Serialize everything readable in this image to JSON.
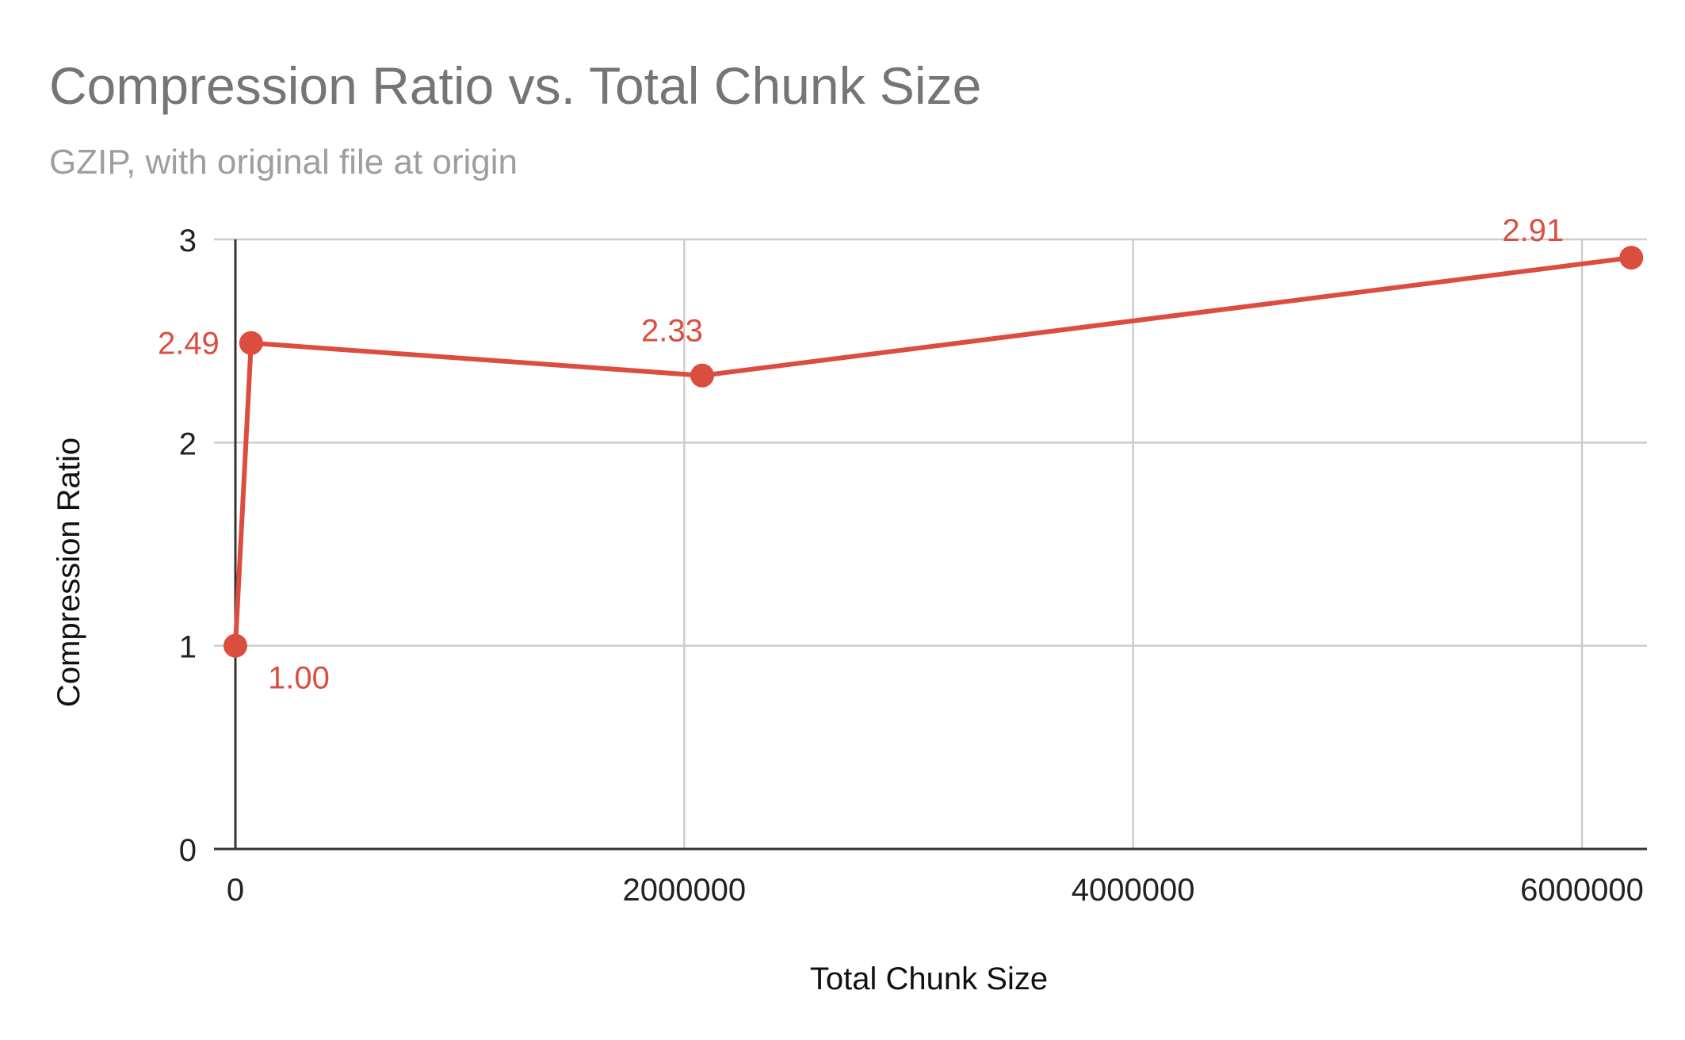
{
  "chart_data": {
    "type": "line",
    "title": "Compression Ratio vs. Total Chunk Size",
    "subtitle": "GZIP, with original file at origin",
    "xlabel": "Total Chunk Size",
    "ylabel": "Compression Ratio",
    "xlim": [
      -20000,
      6300000
    ],
    "ylim": [
      0,
      3
    ],
    "x_ticks": [
      0,
      2000000,
      4000000,
      6000000
    ],
    "x_tick_labels": [
      "0",
      "2000000",
      "4000000",
      "6000000"
    ],
    "y_ticks": [
      0,
      1,
      2,
      3
    ],
    "y_tick_labels": [
      "0",
      "1",
      "2",
      "3"
    ],
    "grid": true,
    "legend": "none",
    "series": [
      {
        "color": "#db4e3f",
        "points": [
          {
            "x": 0,
            "y": 1.0,
            "label": "1.00"
          },
          {
            "x": 70000,
            "y": 2.49,
            "label": "2.49"
          },
          {
            "x": 2080000,
            "y": 2.33,
            "label": "2.33"
          },
          {
            "x": 6220000,
            "y": 2.91,
            "label": "2.91"
          }
        ]
      }
    ]
  }
}
